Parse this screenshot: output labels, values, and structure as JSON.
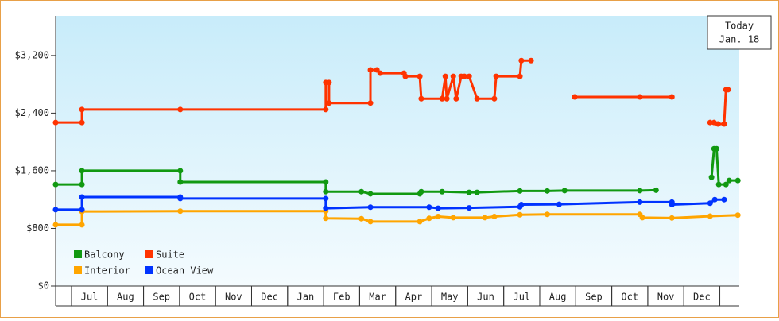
{
  "chart_data": {
    "type": "line",
    "today_box": {
      "line1": "Today",
      "line2": "Jan. 18"
    },
    "xlim": [
      -0.44,
      18.54
    ],
    "xticks": [
      {
        "value": 0.5,
        "label": "Jul"
      },
      {
        "value": 1.5,
        "label": "Aug"
      },
      {
        "value": 2.5,
        "label": "Sep"
      },
      {
        "value": 3.5,
        "label": "Oct"
      },
      {
        "value": 4.5,
        "label": "Nov"
      },
      {
        "value": 5.5,
        "label": "Dec"
      },
      {
        "value": 6.5,
        "label": "Jan"
      },
      {
        "value": 7.5,
        "label": "Feb"
      },
      {
        "value": 8.5,
        "label": "Mar"
      },
      {
        "value": 9.5,
        "label": "Apr"
      },
      {
        "value": 10.5,
        "label": "May"
      },
      {
        "value": 11.5,
        "label": "Jun"
      },
      {
        "value": 12.5,
        "label": "Jul"
      },
      {
        "value": 13.5,
        "label": "Aug"
      },
      {
        "value": 14.5,
        "label": "Sep"
      },
      {
        "value": 15.5,
        "label": "Oct"
      },
      {
        "value": 16.5,
        "label": "Nov"
      },
      {
        "value": 17.5,
        "label": "Dec"
      }
    ],
    "ylim": [
      0,
      3750
    ],
    "yticks": [
      {
        "value": 0,
        "label": "$0"
      },
      {
        "value": 800,
        "label": "$800"
      },
      {
        "value": 1600,
        "label": "$1,600"
      },
      {
        "value": 2400,
        "label": "$2,400"
      },
      {
        "value": 3200,
        "label": "$3,200"
      }
    ],
    "series": [
      {
        "name": "Balcony",
        "color": "#119911",
        "x": [
          -0.44,
          0.29,
          0.29,
          3.02,
          3.02,
          7.06,
          7.06,
          8.05,
          8.3,
          9.67,
          9.71,
          10.29,
          11.04,
          11.26,
          12.45,
          13.21,
          13.69,
          15.78,
          16.23,
          17.2,
          17.77,
          17.84,
          17.91,
          17.97,
          18.17,
          18.26,
          18.5
        ],
        "values": [
          1410,
          1410,
          1600,
          1600,
          1445,
          1445,
          1310,
          1310,
          1280,
          1280,
          1310,
          1310,
          1300,
          1300,
          1320,
          1320,
          1325,
          1325,
          1330,
          null,
          1510,
          1905,
          1905,
          1410,
          1410,
          1465,
          1465
        ]
      },
      {
        "name": "Suite",
        "color": "#ff3300",
        "x": [
          -0.44,
          0.29,
          0.29,
          3.02,
          7.06,
          7.06,
          7.15,
          7.15,
          8.3,
          8.3,
          8.48,
          8.57,
          9.23,
          9.27,
          9.67,
          9.71,
          10.29,
          10.38,
          10.42,
          10.6,
          10.68,
          10.82,
          10.91,
          11.04,
          11.26,
          11.74,
          11.79,
          12.45,
          12.49,
          12.76,
          13.4,
          13.97,
          15.78,
          16.67,
          17.3,
          17.73,
          17.84,
          17.95,
          18.12,
          18.17,
          18.23
        ],
        "values": [
          2270,
          2270,
          2450,
          2450,
          2450,
          2825,
          2825,
          2540,
          2540,
          3000,
          3000,
          2955,
          2955,
          2910,
          2910,
          2600,
          2600,
          2910,
          2600,
          2910,
          2600,
          2910,
          2910,
          2910,
          2600,
          2600,
          2910,
          2910,
          3130,
          3130,
          null,
          2625,
          2625,
          2625,
          null,
          2270,
          2270,
          2250,
          2250,
          2725,
          2725
        ]
      },
      {
        "name": "Interior",
        "color": "#ffa500",
        "x": [
          -0.44,
          0.29,
          0.29,
          3.02,
          7.06,
          7.06,
          8.05,
          8.3,
          9.67,
          9.93,
          10.18,
          10.6,
          11.48,
          11.74,
          12.45,
          13.21,
          15.78,
          15.85,
          16.67,
          17.73,
          18.5
        ],
        "values": [
          850,
          850,
          1035,
          1040,
          1040,
          940,
          935,
          895,
          895,
          940,
          965,
          950,
          950,
          965,
          990,
          995,
          995,
          950,
          945,
          970,
          985
        ]
      },
      {
        "name": "Ocean View",
        "color": "#0033ff",
        "x": [
          -0.44,
          0.29,
          0.29,
          3.02,
          3.02,
          7.06,
          7.06,
          8.3,
          9.93,
          10.18,
          11.04,
          12.45,
          12.49,
          13.54,
          15.78,
          16.67,
          16.67,
          17.73,
          17.86,
          18.12
        ],
        "values": [
          1060,
          1060,
          1235,
          1235,
          1215,
          1215,
          1080,
          1095,
          1095,
          1080,
          1085,
          1100,
          1130,
          1135,
          1165,
          1165,
          1130,
          1150,
          1200,
          1200
        ]
      }
    ]
  }
}
